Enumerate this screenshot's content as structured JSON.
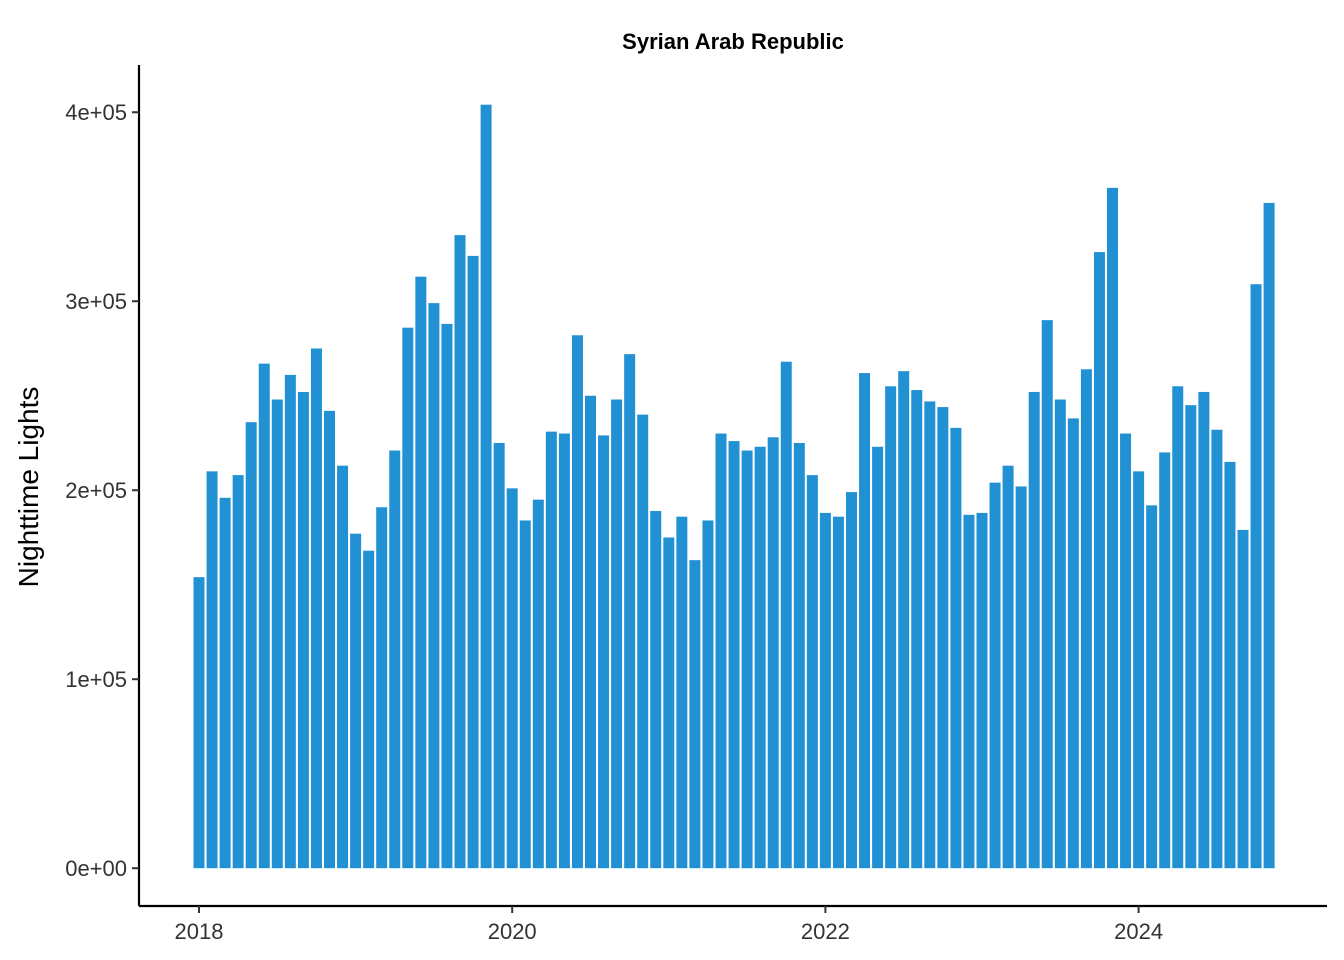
{
  "chart_data": {
    "type": "bar",
    "title": "Syrian Arab Republic",
    "xlabel": "",
    "ylabel": "Nighttime Lights",
    "bar_color": "#2191D4",
    "x_start": "2018-01",
    "x_ticks": [
      "2018",
      "2020",
      "2022",
      "2024"
    ],
    "y_ticks": [
      "0e+00",
      "1e+05",
      "2e+05",
      "3e+05",
      "4e+05"
    ],
    "ylim": [
      -20000,
      425000
    ],
    "grid": false,
    "legend": "none",
    "series": [
      {
        "x": [
          "2018-01",
          "2018-02",
          "2018-03",
          "2018-04",
          "2018-05",
          "2018-06",
          "2018-07",
          "2018-08",
          "2018-09",
          "2018-10",
          "2018-11",
          "2018-12",
          "2019-01",
          "2019-02",
          "2019-03",
          "2019-04",
          "2019-05",
          "2019-06",
          "2019-07",
          "2019-08",
          "2019-09",
          "2019-10",
          "2019-11",
          "2019-12",
          "2020-01",
          "2020-02",
          "2020-03",
          "2020-04",
          "2020-05",
          "2020-06",
          "2020-07",
          "2020-08",
          "2020-09",
          "2020-10",
          "2020-11",
          "2020-12",
          "2021-01",
          "2021-02",
          "2021-03",
          "2021-04",
          "2021-05",
          "2021-06",
          "2021-07",
          "2021-08",
          "2021-09",
          "2021-10",
          "2021-11",
          "2021-12",
          "2022-01",
          "2022-02",
          "2022-03",
          "2022-04",
          "2022-05",
          "2022-06",
          "2022-07",
          "2022-08",
          "2022-09",
          "2022-10",
          "2022-11",
          "2022-12",
          "2023-01",
          "2023-02",
          "2023-03",
          "2023-04",
          "2023-05",
          "2023-06",
          "2023-07",
          "2023-08",
          "2023-09",
          "2023-10",
          "2023-11",
          "2023-12",
          "2024-01",
          "2024-02",
          "2024-03",
          "2024-04",
          "2024-05",
          "2024-06",
          "2024-07",
          "2024-08",
          "2024-09",
          "2024-10",
          "2024-11",
          "2024-12"
        ],
        "values": [
          154000,
          210000,
          196000,
          208000,
          236000,
          267000,
          248000,
          261000,
          252000,
          275000,
          242000,
          213000,
          177000,
          168000,
          191000,
          221000,
          286000,
          313000,
          299000,
          288000,
          335000,
          324000,
          404000,
          225000,
          201000,
          184000,
          195000,
          231000,
          230000,
          282000,
          250000,
          229000,
          248000,
          272000,
          240000,
          189000,
          175000,
          186000,
          163000,
          184000,
          230000,
          226000,
          221000,
          223000,
          228000,
          268000,
          225000,
          208000,
          188000,
          186000,
          199000,
          262000,
          223000,
          255000,
          263000,
          253000,
          247000,
          244000,
          233000,
          187000,
          188000,
          204000,
          213000,
          202000,
          252000,
          290000,
          248000,
          238000,
          264000,
          326000,
          360000,
          230000,
          210000,
          192000,
          220000,
          255000,
          245000,
          252000,
          232000,
          215000,
          179000,
          309000,
          352000,
          0
        ]
      }
    ]
  }
}
